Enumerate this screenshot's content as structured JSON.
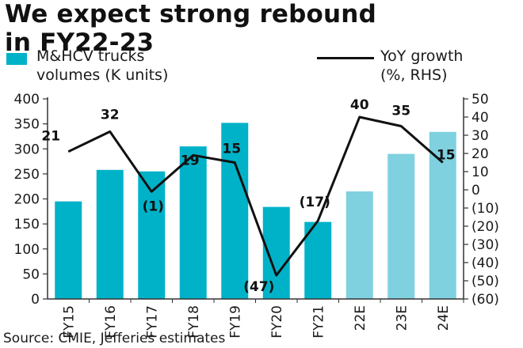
{
  "title_line1": "We expect strong rebound",
  "title_line2": "in FY22-23",
  "source": "Source: CMIE, Jefferies estimates",
  "chart_data": {
    "type": "bar",
    "categories": [
      "FY15",
      "FY16",
      "FY17",
      "FY18",
      "FY19",
      "FY20",
      "FY21",
      "22E",
      "23E",
      "24E"
    ],
    "estimate_flags": [
      false,
      false,
      false,
      false,
      false,
      false,
      false,
      true,
      true,
      true
    ],
    "series": [
      {
        "name": "M&HCV trucks volumes (K units)",
        "type": "bar",
        "axis": "left",
        "values": [
          195,
          258,
          255,
          305,
          352,
          184,
          154,
          215,
          290,
          334
        ]
      },
      {
        "name": "YoY growth (%, RHS)",
        "type": "line",
        "axis": "right",
        "values": [
          21,
          32,
          -1,
          19,
          15,
          -47,
          -17,
          40,
          35,
          15
        ],
        "labels": [
          "21",
          "32",
          "(1)",
          "19",
          "15",
          "(47)",
          "(17)",
          "40",
          "35",
          "15"
        ]
      }
    ],
    "legend": {
      "bar_line1": "M&HCV trucks",
      "bar_line2": "volumes (K units)",
      "line_line1": "YoY growth",
      "line_line2": "(%, RHS)"
    },
    "y_left": {
      "min": 0,
      "max": 400,
      "ticks": [
        "400",
        "350",
        "300",
        "250",
        "200",
        "150",
        "100",
        "50",
        "0"
      ]
    },
    "y_right": {
      "min": -60,
      "max": 50,
      "ticks": [
        "50",
        "40",
        "30",
        "20",
        "10",
        "0",
        "(10)",
        "(20)",
        "(30)",
        "(40)",
        "(50)",
        "(60)"
      ]
    },
    "grid": false,
    "legend_position": "top",
    "colors": {
      "actual": "#00b2c8",
      "estimate": "#7fd1e0",
      "line": "#111111",
      "axis": "#333333"
    }
  }
}
